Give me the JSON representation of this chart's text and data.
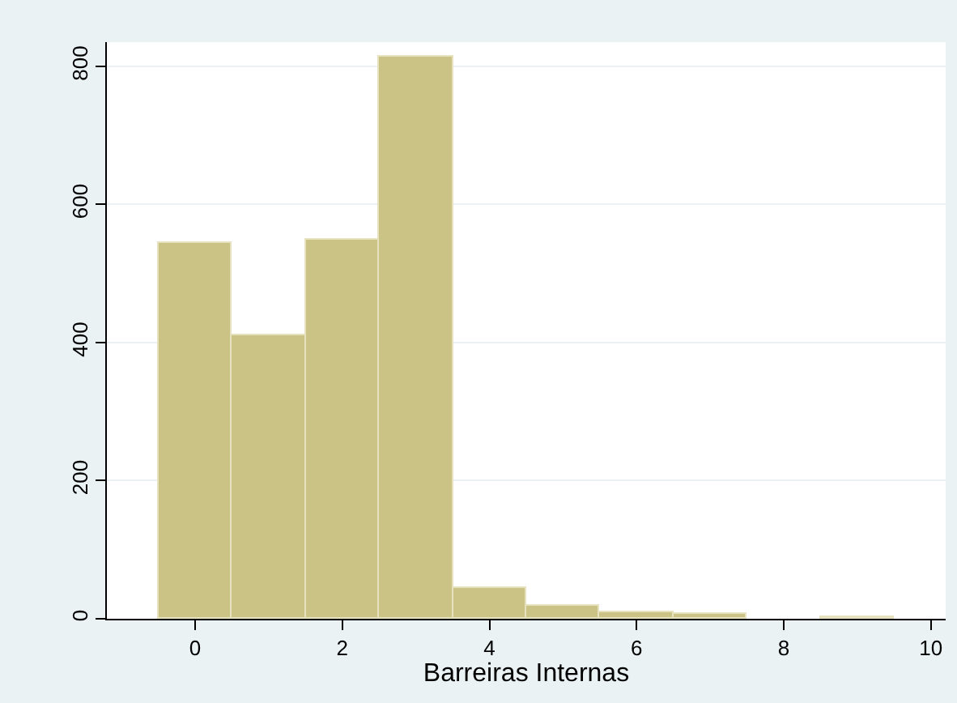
{
  "chart_data": {
    "type": "histogram",
    "xlabel": "Barreiras Internas",
    "bins": [
      -0.5,
      0.5,
      1.5,
      2.5,
      3.5,
      4.5,
      5.5,
      6.5,
      7.5,
      8.5,
      9.5
    ],
    "values": [
      545,
      410,
      550,
      815,
      45,
      19,
      9,
      7,
      0,
      3
    ],
    "color": "#cbc385",
    "xlim": [
      -1.2,
      10.2
    ],
    "xticks": [
      0,
      2,
      4,
      6,
      8,
      10
    ],
    "ylim": [
      0,
      835
    ],
    "yticks": [
      0,
      200,
      400,
      600,
      800
    ],
    "grid": "y"
  }
}
